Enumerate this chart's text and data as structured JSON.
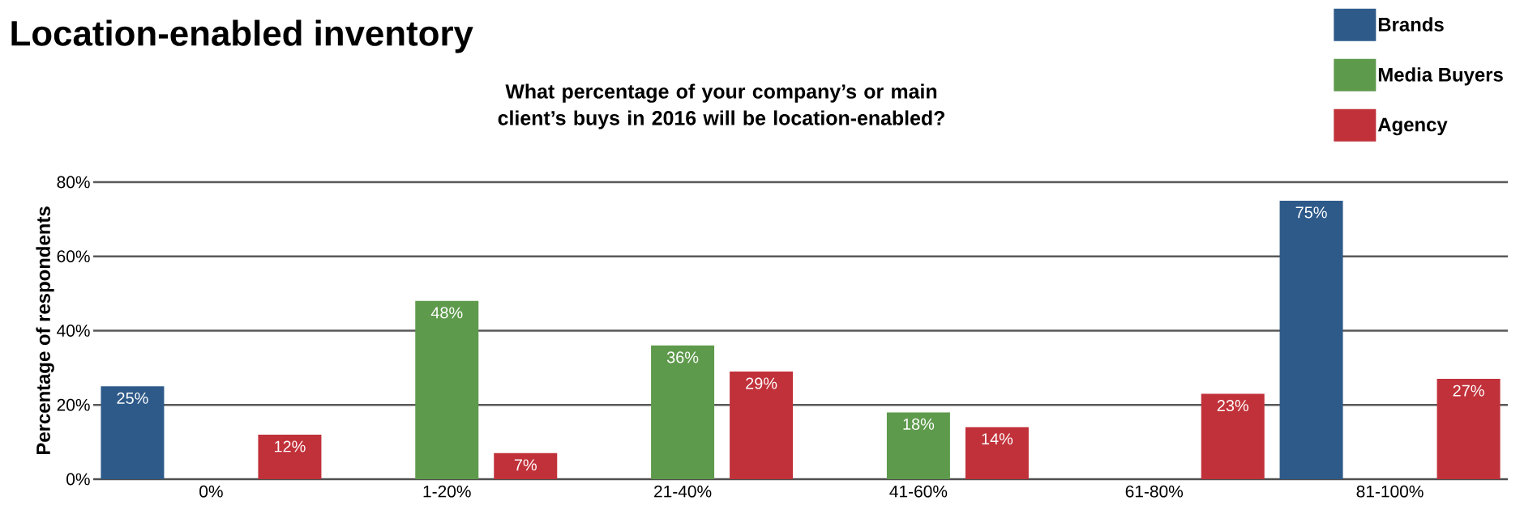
{
  "chart_data": {
    "type": "bar",
    "title": "Location-enabled inventory",
    "subtitle": "What percentage of your company’s or main client’s buys in 2016 will be location-enabled?",
    "ylabel": "Percentage of respondents",
    "categories": [
      "0%",
      "1-20%",
      "21-40%",
      "41-60%",
      "61-80%",
      "81-100%"
    ],
    "series": [
      {
        "name": "Brands",
        "color": "#2e5a8a",
        "values": [
          25,
          null,
          null,
          null,
          null,
          75
        ],
        "value_labels": [
          "25%",
          null,
          null,
          null,
          null,
          "75%"
        ]
      },
      {
        "name": "Media Buyers",
        "color": "#5e9a4c",
        "values": [
          null,
          48,
          36,
          18,
          null,
          null
        ],
        "value_labels": [
          null,
          "48%",
          "36%",
          "18%",
          null,
          null
        ]
      },
      {
        "name": "Agency",
        "color": "#c1313a",
        "values": [
          12,
          7,
          29,
          14,
          23,
          27
        ],
        "value_labels": [
          "12%",
          "7%",
          "29%",
          "14%",
          "23%",
          "27%"
        ]
      }
    ],
    "ylim": [
      0,
      80
    ],
    "yticks": [
      {
        "value": 0,
        "label": "0%"
      },
      {
        "value": 20,
        "label": "20%"
      },
      {
        "value": 40,
        "label": "40%"
      },
      {
        "value": 60,
        "label": "60%"
      },
      {
        "value": 80,
        "label": "80%"
      }
    ],
    "grid": "y",
    "legend": "top right"
  }
}
